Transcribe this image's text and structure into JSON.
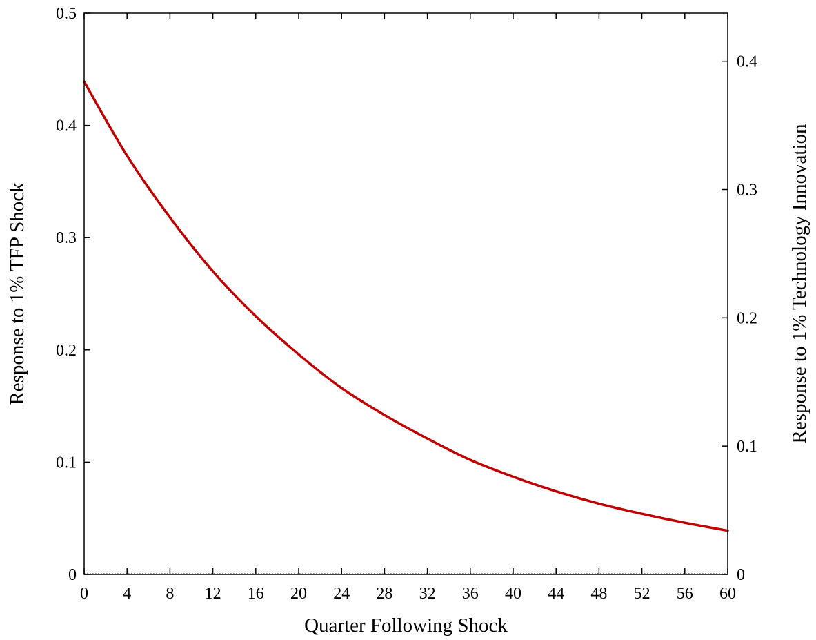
{
  "chart_data": {
    "type": "line",
    "title": "",
    "xlabel": "Quarter Following Shock",
    "ylabel": "Response to 1% TFP Shock",
    "y2label": "Response to 1% Technology Innovation",
    "xlim": [
      0,
      60
    ],
    "ylim": [
      0,
      0.5
    ],
    "y2lim": [
      0,
      0.4375
    ],
    "x_ticks": [
      0,
      4,
      8,
      12,
      16,
      20,
      24,
      28,
      32,
      36,
      40,
      44,
      48,
      52,
      56,
      60
    ],
    "x_tick_labels": [
      "0",
      "4",
      "8",
      "12",
      "16",
      "20",
      "24",
      "28",
      "32",
      "36",
      "40",
      "44",
      "48",
      "52",
      "56",
      "60"
    ],
    "y_ticks": [
      0,
      0.1,
      0.2,
      0.3,
      0.4,
      0.5
    ],
    "y_tick_labels": [
      "0",
      "0.1",
      "0.2",
      "0.3",
      "0.4",
      "0.5"
    ],
    "y2_ticks": [
      0,
      0.1,
      0.2,
      0.3,
      0.4
    ],
    "y2_tick_labels": [
      "0",
      "0.1",
      "0.2",
      "0.3",
      "0.4"
    ],
    "grid": false,
    "legend": "none",
    "zero_line": true,
    "series": [
      {
        "color": "#c00000",
        "x": [
          0,
          4,
          8,
          12,
          16,
          20,
          24,
          28,
          32,
          36,
          40,
          44,
          48,
          52,
          56,
          60
        ],
        "y": [
          0.439,
          0.373,
          0.318,
          0.27,
          0.23,
          0.196,
          0.166,
          0.142,
          0.121,
          0.102,
          0.087,
          0.074,
          0.063,
          0.054,
          0.046,
          0.039
        ]
      }
    ]
  }
}
